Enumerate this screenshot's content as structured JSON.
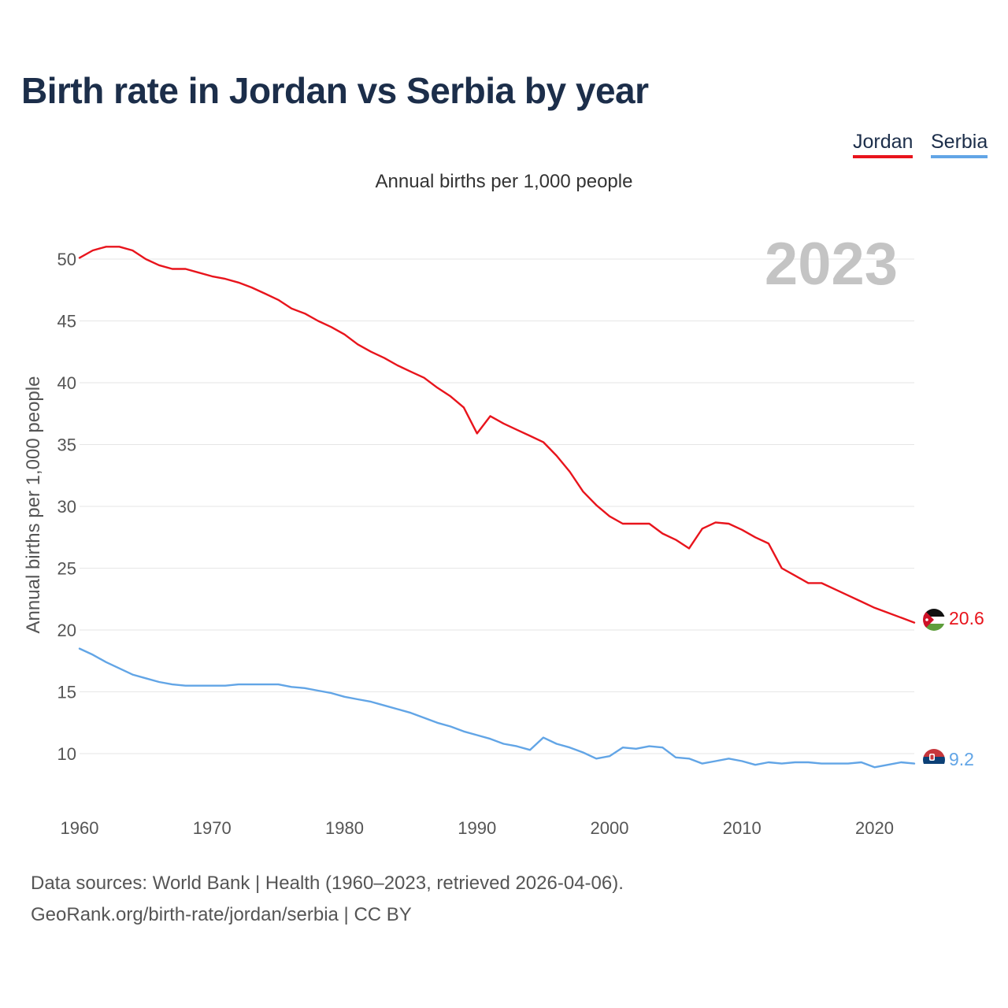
{
  "title": "Birth rate in Jordan vs Serbia by year",
  "subtitle": "Annual births per 1,000 people",
  "footer": {
    "source": "Data sources: World Bank | Health (1960–2023, retrieved 2026-04-06).",
    "credit": "GeoRank.org/birth-rate/jordan/serbia | CC BY"
  },
  "colors": {
    "jordan": "#e8141c",
    "serbia": "#62a5e6",
    "grid": "#e6e6e6",
    "year": "#c4c4c4",
    "tick": "#555555"
  },
  "chart_data": {
    "type": "line",
    "title": "Birth rate in Jordan vs Serbia by year",
    "xlabel": "",
    "ylabel": "Annual births per 1,000 people",
    "year_label": "2023",
    "xlim": [
      1960,
      2023
    ],
    "ylim": [
      6.5,
      52.8
    ],
    "x_ticks": [
      1960,
      1970,
      1980,
      1990,
      2000,
      2010,
      2020
    ],
    "y_ticks": [
      10,
      15,
      20,
      25,
      30,
      35,
      40,
      45,
      50
    ],
    "grid": true,
    "legend": "top-right",
    "x": [
      1960,
      1961,
      1962,
      1963,
      1964,
      1965,
      1966,
      1967,
      1968,
      1969,
      1970,
      1971,
      1972,
      1973,
      1974,
      1975,
      1976,
      1977,
      1978,
      1979,
      1980,
      1981,
      1982,
      1983,
      1984,
      1985,
      1986,
      1987,
      1988,
      1989,
      1990,
      1991,
      1992,
      1993,
      1994,
      1995,
      1996,
      1997,
      1998,
      1999,
      2000,
      2001,
      2002,
      2003,
      2004,
      2005,
      2006,
      2007,
      2008,
      2009,
      2010,
      2011,
      2012,
      2013,
      2014,
      2015,
      2016,
      2017,
      2018,
      2019,
      2020,
      2021,
      2022,
      2023
    ],
    "series": [
      {
        "name": "Jordan",
        "color": "#e8141c",
        "end_label": "20.6",
        "values": [
          50.1,
          50.7,
          51.0,
          51.0,
          50.7,
          50.0,
          49.5,
          49.2,
          49.2,
          48.9,
          48.6,
          48.4,
          48.1,
          47.7,
          47.2,
          46.7,
          46.0,
          45.6,
          45.0,
          44.5,
          43.9,
          43.1,
          42.5,
          42.0,
          41.4,
          40.9,
          40.4,
          39.6,
          38.9,
          38.0,
          35.9,
          37.3,
          36.7,
          36.2,
          35.7,
          35.2,
          34.1,
          32.8,
          31.2,
          30.1,
          29.2,
          28.6,
          28.6,
          28.6,
          27.8,
          27.3,
          26.6,
          28.2,
          28.7,
          28.6,
          28.1,
          27.5,
          27.0,
          25.0,
          24.4,
          23.8,
          23.8,
          23.3,
          22.8,
          22.3,
          21.8,
          21.4,
          21.0,
          20.6
        ]
      },
      {
        "name": "Serbia",
        "color": "#62a5e6",
        "end_label": "9.2",
        "values": [
          18.5,
          18.0,
          17.4,
          16.9,
          16.4,
          16.1,
          15.8,
          15.6,
          15.5,
          15.5,
          15.5,
          15.5,
          15.6,
          15.6,
          15.6,
          15.6,
          15.4,
          15.3,
          15.1,
          14.9,
          14.6,
          14.4,
          14.2,
          13.9,
          13.6,
          13.3,
          12.9,
          12.5,
          12.2,
          11.8,
          11.5,
          11.2,
          10.8,
          10.6,
          10.3,
          11.3,
          10.8,
          10.5,
          10.1,
          9.6,
          9.8,
          10.5,
          10.4,
          10.6,
          10.5,
          9.7,
          9.6,
          9.2,
          9.4,
          9.6,
          9.4,
          9.1,
          9.3,
          9.2,
          9.3,
          9.3,
          9.2,
          9.2,
          9.2,
          9.3,
          8.9,
          9.1,
          9.3,
          9.2
        ]
      }
    ]
  }
}
